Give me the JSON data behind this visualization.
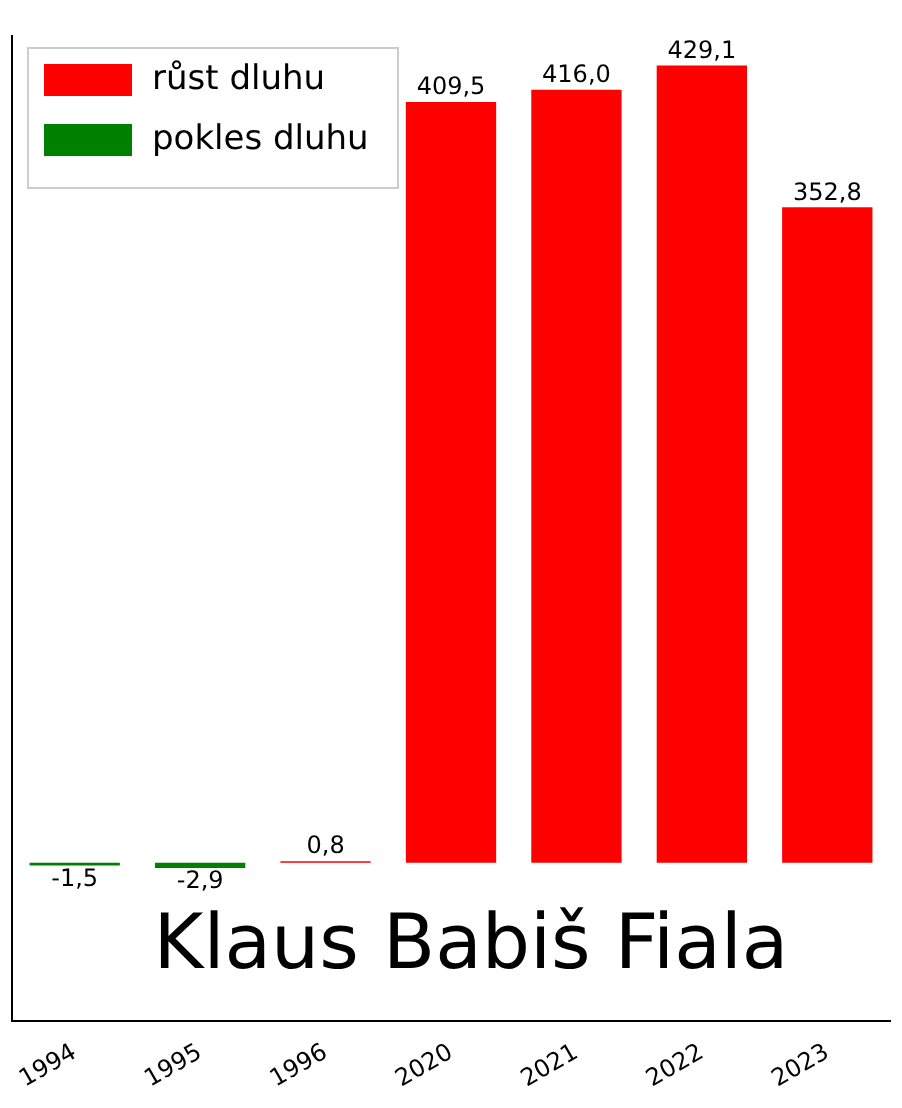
{
  "chart_data": {
    "type": "bar",
    "categories": [
      "1994",
      "1995",
      "1996",
      "2020",
      "2021",
      "2022",
      "2023"
    ],
    "series": [
      {
        "name": "růst dluhu",
        "color": "#ff0000",
        "values": [
          null,
          null,
          0.8,
          409.5,
          416.0,
          429.1,
          352.8
        ],
        "value_labels": [
          null,
          null,
          "0,8",
          "409,5",
          "416,0",
          "429,1",
          "352,8"
        ]
      },
      {
        "name": "pokles dluhu",
        "color": "#008000",
        "values": [
          -1.5,
          -2.9,
          null,
          null,
          null,
          null,
          null
        ],
        "value_labels": [
          "-1,5",
          "-2,9",
          null,
          null,
          null,
          null,
          null
        ]
      }
    ],
    "stacked": true,
    "ylim": [
      -85,
      445
    ],
    "tick_labels": "x",
    "grid": false,
    "legend": "top left",
    "annotations": [
      "Klaus Babiš Fiala"
    ]
  }
}
